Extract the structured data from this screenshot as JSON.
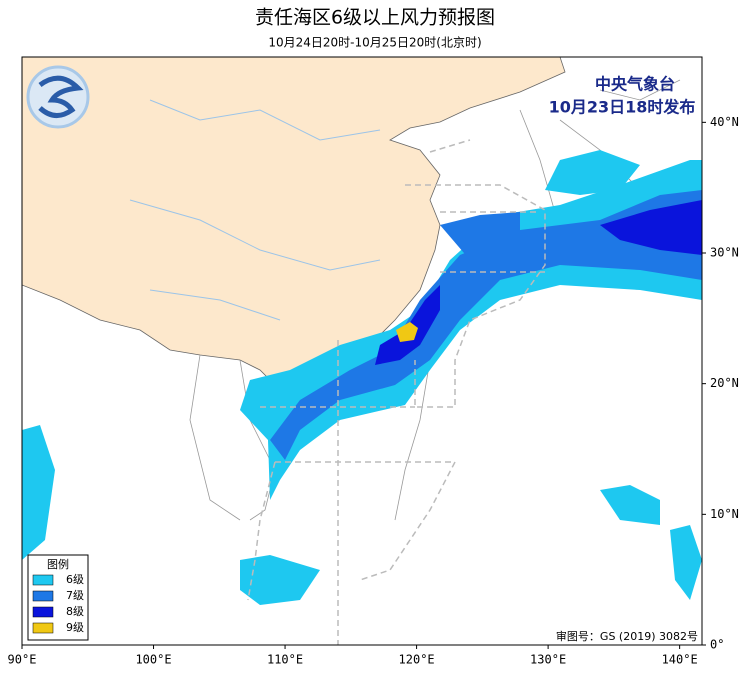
{
  "header": {
    "title": "责任海区6级以上风力预报图",
    "subtitle": "10月24日20时-10月25日20时(北京时)"
  },
  "map": {
    "agency": "中央气象台",
    "issued": "10月23日18时发布",
    "xlim": [
      90,
      141.7
    ],
    "ylim": [
      0,
      45
    ],
    "xticks": [
      {
        "value": 90,
        "label": "90°E"
      },
      {
        "value": 100,
        "label": "100°E"
      },
      {
        "value": 110,
        "label": "110°E"
      },
      {
        "value": 120,
        "label": "120°E"
      },
      {
        "value": 130,
        "label": "130°E"
      },
      {
        "value": 140,
        "label": "140°E"
      }
    ],
    "yticks": [
      {
        "value": 0,
        "label": "0°"
      },
      {
        "value": 10,
        "label": "10°N"
      },
      {
        "value": 20,
        "label": "20°N"
      },
      {
        "value": 30,
        "label": "30°N"
      },
      {
        "value": 40,
        "label": "40°N"
      }
    ],
    "approval": "审图号：GS (2019) 3082号"
  },
  "legend": {
    "title": "图例",
    "items": [
      {
        "label": "6级",
        "color": "#1ec8f0"
      },
      {
        "label": "7级",
        "color": "#1e78e6"
      },
      {
        "label": "8级",
        "color": "#0a14dc"
      },
      {
        "label": "9级",
        "color": "#f0c814"
      }
    ]
  }
}
